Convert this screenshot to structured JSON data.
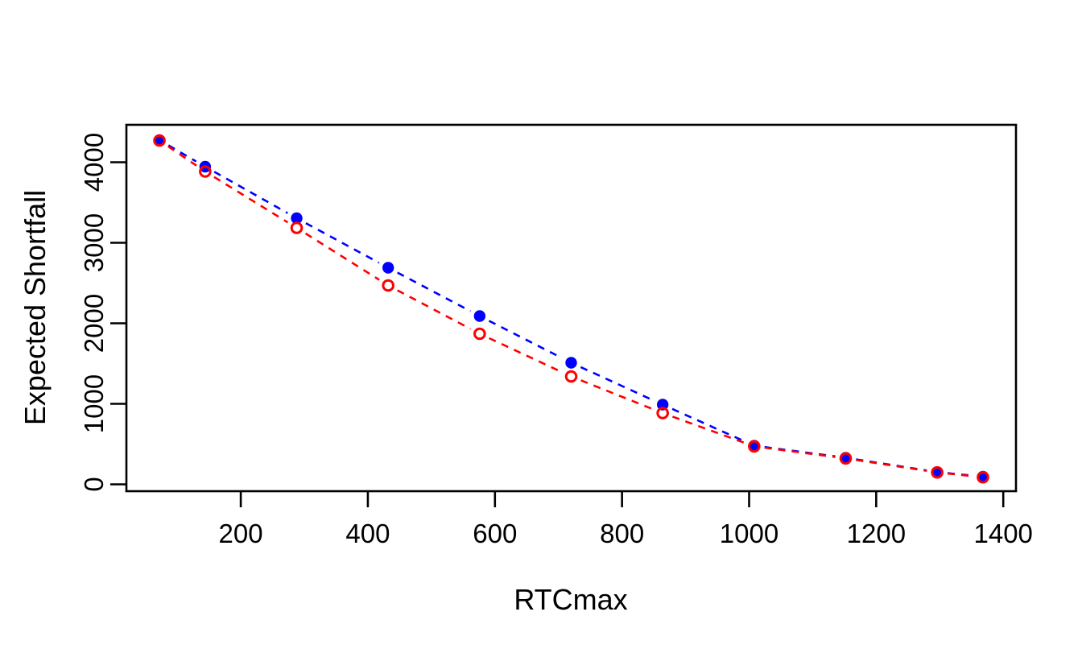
{
  "figure": {
    "background": "#FFFFFF"
  },
  "chart_data": {
    "type": "line",
    "title": "",
    "xlabel": "RTCmax",
    "ylabel": "Expected Shortfall",
    "x": [
      72,
      144,
      288,
      432,
      576,
      720,
      864,
      1008,
      1152,
      1296,
      1368
    ],
    "series": [
      {
        "name": "blue-filled-series",
        "color": "#0000FF",
        "marker": "filled-circle",
        "linestyle": "dashed",
        "values": [
          4275,
          3945,
          3305,
          2690,
          2090,
          1510,
          990,
          480,
          330,
          152,
          95
        ]
      },
      {
        "name": "red-open-series",
        "color": "#FF0000",
        "marker": "open-circle",
        "linestyle": "dashed",
        "values": [
          4270,
          3885,
          3185,
          2470,
          1870,
          1340,
          885,
          472,
          322,
          148,
          88
        ]
      }
    ],
    "xticks": [
      200,
      400,
      600,
      800,
      1000,
      1200,
      1400
    ],
    "yticks": [
      0,
      1000,
      2000,
      3000,
      4000
    ],
    "xlim": [
      20,
      1420
    ],
    "ylim": [
      -85,
      4465
    ],
    "grid": false,
    "legend_position": "none",
    "axis_color": "#000000"
  }
}
